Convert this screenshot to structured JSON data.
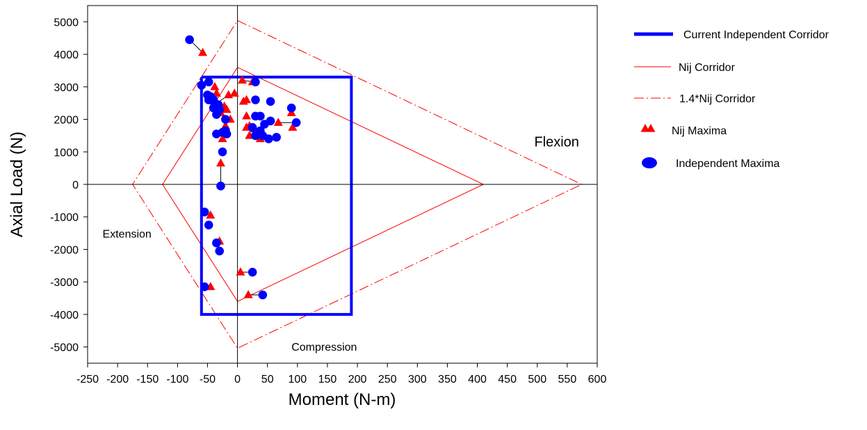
{
  "chart_data": {
    "type": "scatter",
    "xlabel": "Moment (N-m)",
    "ylabel": "Axial Load (N)",
    "xlim": [
      -250,
      600
    ],
    "ylim": [
      -5500,
      5500
    ],
    "xticks": [
      -250,
      -200,
      -150,
      -100,
      -50,
      0,
      50,
      100,
      150,
      200,
      250,
      300,
      350,
      400,
      450,
      500,
      550,
      600
    ],
    "yticks": [
      -5000,
      -4000,
      -3000,
      -2000,
      -1000,
      0,
      1000,
      2000,
      3000,
      4000,
      5000
    ],
    "grid": false,
    "legend_position": "top-right (outside plot)",
    "corridors": {
      "independent": {
        "name": "Current Independent Corridor",
        "color": "#0000ff",
        "points": [
          [
            -60,
            3300
          ],
          [
            190,
            3300
          ],
          [
            190,
            -4000
          ],
          [
            -60,
            -4000
          ],
          [
            -60,
            3300
          ]
        ]
      },
      "nij": {
        "name": "Nij Corridor",
        "color": "#ff0000",
        "points": [
          [
            0,
            3600
          ],
          [
            410,
            0
          ],
          [
            0,
            -3600
          ],
          [
            -125,
            0
          ],
          [
            0,
            3600
          ]
        ]
      },
      "nij14": {
        "name": "1.4*Nij Corridor",
        "color": "#ff0000",
        "points": [
          [
            0,
            5040
          ],
          [
            574,
            0
          ],
          [
            0,
            -5040
          ],
          [
            -175,
            0
          ],
          [
            0,
            5040
          ]
        ]
      }
    },
    "series": [
      {
        "name": "Nij Maxima",
        "marker": "triangle",
        "color": "#ff0000",
        "points": [
          [
            -58,
            4050
          ],
          [
            -38,
            3000
          ],
          [
            -35,
            2800
          ],
          [
            -15,
            2750
          ],
          [
            -5,
            2800
          ],
          [
            8,
            3200
          ],
          [
            25,
            3150
          ],
          [
            -28,
            2200
          ],
          [
            -22,
            2400
          ],
          [
            -18,
            2300
          ],
          [
            -12,
            2000
          ],
          [
            -20,
            1800
          ],
          [
            -25,
            1400
          ],
          [
            -28,
            650
          ],
          [
            10,
            2550
          ],
          [
            15,
            2600
          ],
          [
            15,
            2100
          ],
          [
            20,
            1800
          ],
          [
            15,
            1750
          ],
          [
            20,
            1500
          ],
          [
            38,
            1400
          ],
          [
            28,
            1700
          ],
          [
            68,
            1900
          ],
          [
            90,
            2200
          ],
          [
            92,
            1750
          ],
          [
            -45,
            -950
          ],
          [
            -30,
            -1750
          ],
          [
            -45,
            -3150
          ],
          [
            5,
            -2700
          ],
          [
            18,
            -3400
          ]
        ]
      },
      {
        "name": "Independent Maxima",
        "marker": "circle",
        "color": "#0000ff",
        "points": [
          [
            -80,
            4450
          ],
          [
            -60,
            3050
          ],
          [
            -48,
            3150
          ],
          [
            -50,
            2750
          ],
          [
            -45,
            2700
          ],
          [
            -40,
            2600
          ],
          [
            -48,
            2600
          ],
          [
            -38,
            2450
          ],
          [
            -40,
            2350
          ],
          [
            -32,
            2450
          ],
          [
            -30,
            2300
          ],
          [
            -35,
            2150
          ],
          [
            -20,
            2000
          ],
          [
            -20,
            1650
          ],
          [
            -35,
            1550
          ],
          [
            -25,
            1600
          ],
          [
            -18,
            1550
          ],
          [
            -25,
            1000
          ],
          [
            -28,
            -50
          ],
          [
            30,
            3150
          ],
          [
            30,
            2600
          ],
          [
            55,
            2550
          ],
          [
            30,
            2100
          ],
          [
            38,
            2100
          ],
          [
            45,
            1850
          ],
          [
            55,
            1950
          ],
          [
            25,
            1750
          ],
          [
            30,
            1500
          ],
          [
            38,
            1650
          ],
          [
            42,
            1500
          ],
          [
            52,
            1400
          ],
          [
            65,
            1450
          ],
          [
            90,
            2350
          ],
          [
            98,
            1900
          ],
          [
            -55,
            -850
          ],
          [
            -48,
            -1250
          ],
          [
            -35,
            -1800
          ],
          [
            -30,
            -2050
          ],
          [
            25,
            -2700
          ],
          [
            -55,
            -3150
          ],
          [
            42,
            -3400
          ]
        ]
      }
    ],
    "pairs": [
      [
        [
          -80,
          4450
        ],
        [
          -58,
          4050
        ]
      ],
      [
        [
          -28,
          -50
        ],
        [
          -28,
          650
        ]
      ],
      [
        [
          25,
          -2700
        ],
        [
          5,
          -2700
        ]
      ],
      [
        [
          42,
          -3400
        ],
        [
          18,
          -3400
        ]
      ],
      [
        [
          -55,
          -3150
        ],
        [
          -45,
          -3150
        ]
      ],
      [
        [
          98,
          1900
        ],
        [
          68,
          1900
        ]
      ],
      [
        [
          30,
          3150
        ],
        [
          8,
          3200
        ]
      ],
      [
        [
          -38,
          2450
        ],
        [
          -15,
          2750
        ]
      ]
    ],
    "annotations": [
      {
        "text": "Flexion",
        "x": 495,
        "y": 1170,
        "size": "big"
      },
      {
        "text": "Extension",
        "x": -225,
        "y": -1640,
        "size": "normal"
      },
      {
        "text": "Compression",
        "x": 90,
        "y": -5120,
        "size": "normal"
      }
    ]
  },
  "legend": [
    {
      "label": "Current Independent Corridor",
      "kind": "thick-line",
      "color": "#0000ff"
    },
    {
      "label": "Nij Corridor",
      "kind": "thin-line",
      "color": "#ff0000"
    },
    {
      "label": "1.4*Nij Corridor",
      "kind": "dashdot-line",
      "color": "#ff0000"
    },
    {
      "label": "Nij Maxima",
      "kind": "triangle",
      "color": "#ff0000"
    },
    {
      "label": "Independent Maxima",
      "kind": "circle",
      "color": "#0000ff"
    }
  ]
}
